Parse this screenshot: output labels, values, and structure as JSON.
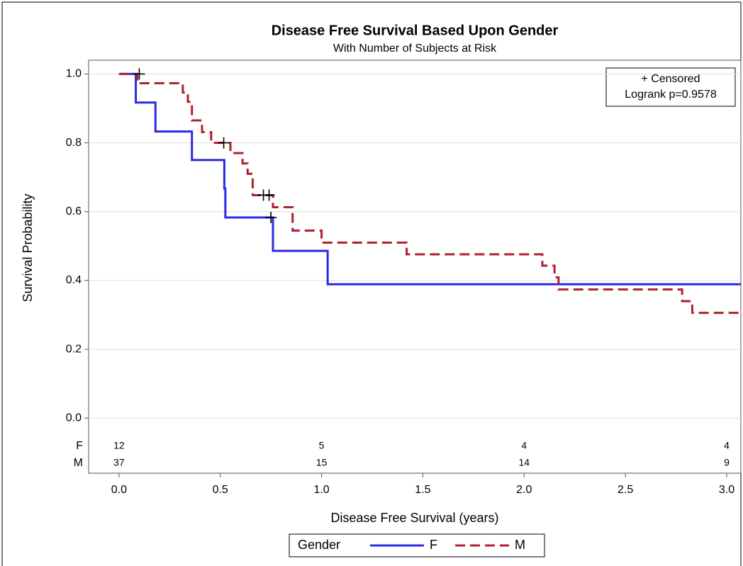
{
  "chart_data": {
    "type": "step",
    "title": "Disease Free Survival Based Upon Gender",
    "subtitle": "With Number of Subjects at Risk",
    "x_label": "Disease Free Survival (years)",
    "y_label": "Survival Probability",
    "xlim": [
      -0.15,
      3.07
    ],
    "ylim": [
      -0.16,
      1.04
    ],
    "xticks": [
      {
        "value": 0,
        "label": "0.0"
      },
      0.5,
      {
        "value": 1,
        "label": "1.0"
      },
      1.5,
      {
        "value": 2,
        "label": "2.0"
      },
      2.5,
      {
        "value": 3,
        "label": "3.0"
      }
    ],
    "yticks": [
      {
        "value": 0,
        "label": "0.0"
      },
      0.2,
      0.4,
      0.6,
      0.8,
      {
        "value": 1,
        "label": "1.0"
      }
    ],
    "grid": true,
    "legend_title": "Gender",
    "series": [
      {
        "name": "F",
        "color": "#2a2ae6",
        "dash": false,
        "x": [
          0,
          0.083,
          0.18,
          0.36,
          0.52,
          0.525,
          0.76,
          1.03
        ],
        "values": [
          1.0,
          0.917,
          0.833,
          0.75,
          0.667,
          0.583,
          0.486,
          0.389
        ],
        "censored": {
          "x": [
            0.75
          ],
          "values": [
            0.583
          ]
        }
      },
      {
        "name": "M",
        "color": "#b02030",
        "dash": true,
        "x": [
          0,
          0.09,
          0.315,
          0.34,
          0.36,
          0.41,
          0.455,
          0.55,
          0.61,
          0.635,
          0.66,
          0.76,
          0.857,
          1.0,
          1.42,
          2.09,
          2.15,
          2.17,
          2.78,
          2.83
        ],
        "values": [
          1.0,
          0.973,
          0.946,
          0.919,
          0.865,
          0.831,
          0.8,
          0.77,
          0.74,
          0.71,
          0.648,
          0.613,
          0.545,
          0.51,
          0.476,
          0.443,
          0.409,
          0.374,
          0.34,
          0.306
        ],
        "censored": {
          "x": [
            0.1,
            0.517,
            0.713,
            0.741
          ],
          "values": [
            1.0,
            0.8,
            0.648,
            0.648
          ]
        }
      }
    ],
    "inset": {
      "censored_label": "+ Censored",
      "logrank": "Logrank p=0.9578"
    },
    "at_risk": {
      "labels": [
        "F",
        "M"
      ],
      "times": [
        0,
        1,
        2,
        3
      ],
      "rows": [
        [
          12,
          5,
          4,
          4
        ],
        [
          37,
          15,
          14,
          9
        ]
      ]
    }
  }
}
